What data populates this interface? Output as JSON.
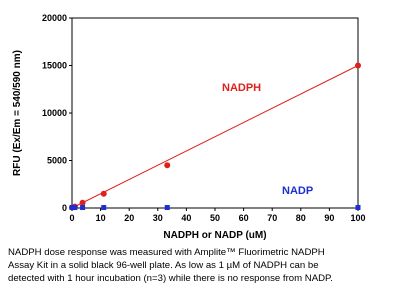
{
  "chart_data": {
    "type": "scatter",
    "xlabel": "NADPH or NADP (uM)",
    "ylabel": "RFU (Ex/Em = 540/590 nm)",
    "x": [
      0,
      1,
      3.7,
      11.1,
      33.3,
      100
    ],
    "series": [
      {
        "name": "NADPH",
        "color": "#e0201c",
        "marker": "circle",
        "values": [
          50,
          150,
          550,
          1500,
          4500,
          15000
        ],
        "fit": {
          "x": [
            0,
            100
          ],
          "values": [
            0,
            15000
          ]
        }
      },
      {
        "name": "NADP",
        "color": "#1c2fd0",
        "marker": "square",
        "values": [
          50,
          50,
          50,
          50,
          50,
          50
        ]
      }
    ],
    "xlim": [
      0,
      100
    ],
    "xticks": [
      0,
      10,
      20,
      30,
      40,
      50,
      60,
      70,
      80,
      90,
      100
    ],
    "ylim": [
      0,
      20000
    ],
    "yticks": [
      0,
      5000,
      10000,
      15000,
      20000
    ]
  },
  "caption": [
    "NADPH dose response was measured with Amplite™ Fluorimetric NADPH",
    "Assay Kit in a solid black 96-well plate. As low as 1 µM of NADPH can be",
    "detected with 1 hour incubation (n=3) while there is no response from NADP."
  ]
}
